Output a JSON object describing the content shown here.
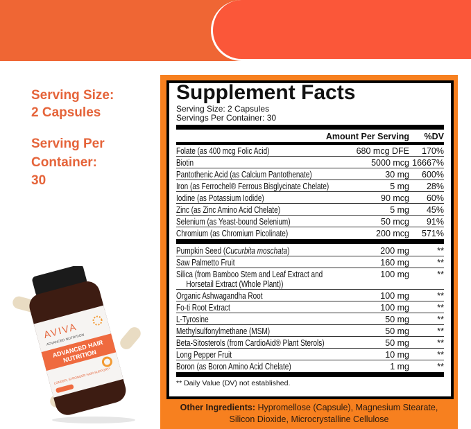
{
  "left_panel": {
    "serving_size_label": "Serving Size:",
    "serving_size_value": "2 Capsules",
    "servings_label_line1": "Serving Per",
    "servings_label_line2": "Container:",
    "servings_value": "30"
  },
  "facts": {
    "title": "Supplement Facts",
    "serving_size": "Serving Size: 2 Capsules",
    "servings_per_container": "Servings Per Container: 30",
    "header_amount": "Amount Per Serving",
    "header_dv": "%DV",
    "vitamins": [
      {
        "name": "Folate (as 400 mcg Folic Acid)",
        "amount": "680 mcg DFE",
        "dv": "170%"
      },
      {
        "name": "Biotin",
        "amount": "5000 mcg",
        "dv": "16667%"
      },
      {
        "name": "Pantothenic Acid (as Calcium Pantothenate)",
        "amount": "30 mg",
        "dv": "600%"
      },
      {
        "name": "Iron (as Ferrochel® Ferrous Bisglycinate Chelate)",
        "amount": "5 mg",
        "dv": "28%"
      },
      {
        "name": "Iodine (as Potassium Iodide)",
        "amount": "90 mcg",
        "dv": "60%"
      },
      {
        "name": "Zinc (as Zinc Amino Acid Chelate)",
        "amount": "5 mg",
        "dv": "45%"
      },
      {
        "name": "Selenium (as Yeast-bound Selenium)",
        "amount": "50 mcg",
        "dv": "91%"
      },
      {
        "name": "Chromium (as Chromium Picolinate)",
        "amount": "200 mcg",
        "dv": "571%"
      }
    ],
    "pumpkin": {
      "name": "Pumpkin Seed (",
      "italic": "Cucurbita moschata",
      "close": ")",
      "amount": "200 mg",
      "dv": "**"
    },
    "saw": {
      "name": "Saw Palmetto Fruit",
      "amount": "160 mg",
      "dv": "**"
    },
    "silica": {
      "line1": "Silica (from Bamboo Stem and Leaf Extract and",
      "line2": "Horsetail Extract (Whole Plant))",
      "amount": "100 mg",
      "dv": "**"
    },
    "others": [
      {
        "name": "Organic Ashwagandha Root",
        "amount": "100 mg",
        "dv": "**"
      },
      {
        "name": "Fo-ti Root Extract",
        "amount": "100 mg",
        "dv": "**"
      },
      {
        "name": "L-Tyrosine",
        "amount": "50 mg",
        "dv": "**"
      },
      {
        "name": "Methylsulfonylmethane (MSM)",
        "amount": "50 mg",
        "dv": "**"
      },
      {
        "name": "Beta-Sitosterols (from CardioAid® Plant Sterols)",
        "amount": "50 mg",
        "dv": "**"
      },
      {
        "name": "Long Pepper Fruit",
        "amount": "10 mg",
        "dv": "**"
      },
      {
        "name": "Boron (as Boron Amino Acid Chelate)",
        "amount": "1 mg",
        "dv": "**"
      }
    ],
    "footnote": "** Daily Value (DV) not established."
  },
  "other_ingredients": {
    "label": "Other Ingredients:",
    "line1": " Hypromellose (Capsule), Magnesium Stearate,",
    "line2": "Silicon Dioxide, Microcrystalline Cellulose"
  },
  "bottle": {
    "brand": "AVIVA",
    "brand_sub": "ADVANCED NUTRITION",
    "product_line1": "ADVANCED HAIR",
    "product_line2": "NUTRITION",
    "tagline": "LONGER, STRONGER HAIR SUPPORT*"
  },
  "colors": {
    "banner_left": "#ef6634",
    "banner_right": "#fb5739",
    "accent_text": "#e5643a",
    "panel_orange": "#f7801f"
  }
}
